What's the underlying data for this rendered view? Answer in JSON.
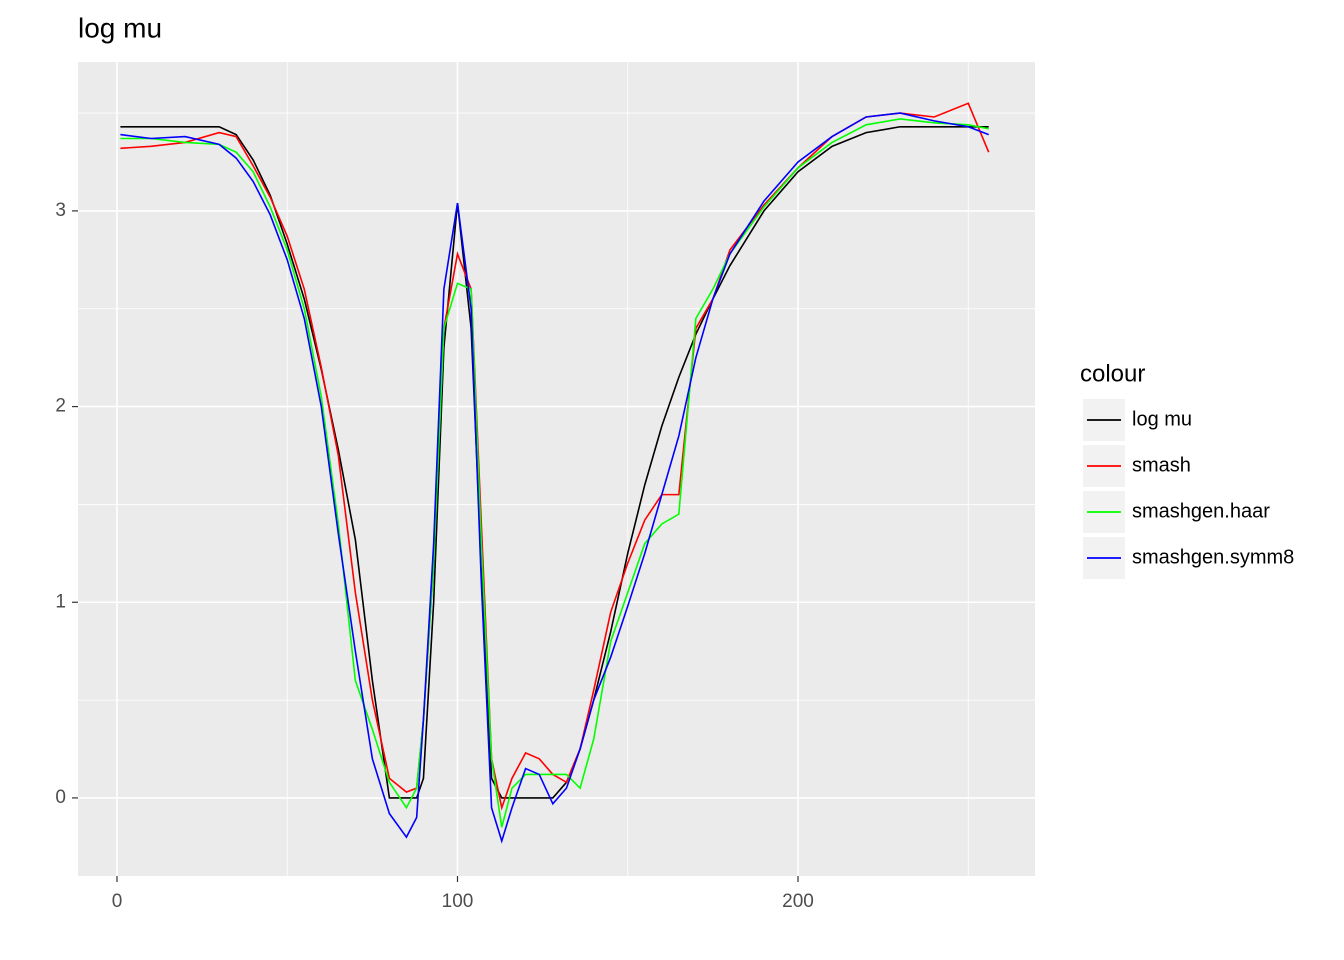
{
  "chart_data": {
    "type": "line",
    "title": "log mu",
    "x": [
      1,
      10,
      20,
      30,
      35,
      40,
      45,
      50,
      55,
      60,
      65,
      70,
      75,
      80,
      85,
      88,
      90,
      93,
      96,
      100,
      104,
      107,
      110,
      113,
      116,
      120,
      124,
      128,
      132,
      136,
      140,
      145,
      150,
      155,
      160,
      165,
      170,
      175,
      180,
      190,
      200,
      210,
      220,
      230,
      240,
      250,
      256
    ],
    "series": [
      {
        "name": "log mu",
        "color": "#000000",
        "values": [
          3.43,
          3.43,
          3.43,
          3.43,
          3.39,
          3.26,
          3.08,
          2.83,
          2.55,
          2.19,
          1.78,
          1.32,
          0.6,
          0,
          0,
          0,
          0.1,
          1.0,
          2.3,
          3.04,
          2.4,
          1.2,
          0.1,
          0,
          0,
          0,
          0,
          0,
          0.08,
          0.25,
          0.5,
          0.85,
          1.25,
          1.6,
          1.9,
          2.15,
          2.37,
          2.55,
          2.72,
          3.0,
          3.2,
          3.33,
          3.4,
          3.43,
          3.43,
          3.43,
          3.43
        ]
      },
      {
        "name": "smash",
        "color": "#ff0000",
        "values": [
          3.32,
          3.33,
          3.35,
          3.4,
          3.38,
          3.23,
          3.07,
          2.87,
          2.6,
          2.2,
          1.75,
          1.05,
          0.5,
          0.1,
          0.03,
          0.05,
          0.4,
          1.2,
          2.4,
          2.78,
          2.6,
          1.4,
          0.2,
          -0.05,
          0.1,
          0.23,
          0.2,
          0.12,
          0.08,
          0.25,
          0.55,
          0.95,
          1.2,
          1.42,
          1.55,
          1.55,
          2.4,
          2.55,
          2.8,
          3.03,
          3.22,
          3.38,
          3.48,
          3.5,
          3.48,
          3.55,
          3.3
        ]
      },
      {
        "name": "smashgen.haar",
        "color": "#00ff00",
        "values": [
          3.37,
          3.37,
          3.35,
          3.34,
          3.3,
          3.2,
          3.02,
          2.8,
          2.5,
          2.05,
          1.4,
          0.6,
          0.35,
          0.08,
          -0.05,
          0.05,
          0.4,
          1.2,
          2.4,
          2.63,
          2.6,
          1.3,
          0.2,
          -0.15,
          0.05,
          0.12,
          0.12,
          0.12,
          0.12,
          0.05,
          0.3,
          0.8,
          1.05,
          1.3,
          1.4,
          1.45,
          2.45,
          2.6,
          2.78,
          3.02,
          3.22,
          3.35,
          3.44,
          3.47,
          3.45,
          3.44,
          3.42
        ]
      },
      {
        "name": "smashgen.symm8",
        "color": "#0000ff",
        "values": [
          3.39,
          3.37,
          3.38,
          3.34,
          3.27,
          3.15,
          2.98,
          2.75,
          2.45,
          2.0,
          1.35,
          0.75,
          0.2,
          -0.08,
          -0.2,
          -0.1,
          0.4,
          1.3,
          2.6,
          3.04,
          2.5,
          1.1,
          -0.05,
          -0.22,
          -0.05,
          0.15,
          0.12,
          -0.03,
          0.05,
          0.25,
          0.5,
          0.72,
          0.98,
          1.25,
          1.55,
          1.85,
          2.25,
          2.55,
          2.78,
          3.05,
          3.25,
          3.38,
          3.48,
          3.5,
          3.46,
          3.43,
          3.39
        ]
      }
    ],
    "xlim": [
      -11.45,
      269.6
    ],
    "xticks": [
      0,
      100,
      200
    ],
    "xminor": [
      50,
      150,
      250
    ],
    "ylim": [
      -0.399,
      3.761
    ],
    "yticks": [
      0,
      1,
      2,
      3
    ],
    "yminor": [
      0.5,
      1.5,
      2.5,
      3.5
    ],
    "grid": true,
    "legend_title": "colour",
    "legend": "right"
  }
}
